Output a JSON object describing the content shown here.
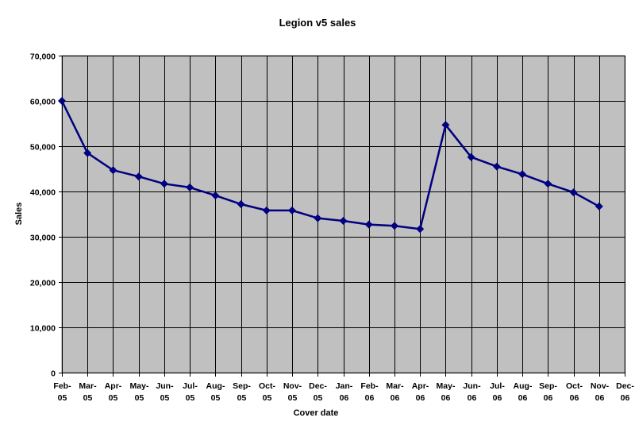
{
  "chart_data": {
    "type": "line",
    "title": "Legion v5 sales",
    "xlabel": "Cover date",
    "ylabel": "Sales",
    "ylim": [
      0,
      70000
    ],
    "ytick_step": 10000,
    "y_tick_labels": [
      "0",
      "10,000",
      "20,000",
      "30,000",
      "40,000",
      "50,000",
      "60,000",
      "70,000"
    ],
    "grid": true,
    "legend": "none",
    "plot_background": "#c0c0c0",
    "series_color": "#000080",
    "categories": [
      [
        "Feb-",
        "05"
      ],
      [
        "Mar-",
        "05"
      ],
      [
        "Apr-",
        "05"
      ],
      [
        "May-",
        "05"
      ],
      [
        "Jun-",
        "05"
      ],
      [
        "Jul-",
        "05"
      ],
      [
        "Aug-",
        "05"
      ],
      [
        "Sep-",
        "05"
      ],
      [
        "Oct-",
        "05"
      ],
      [
        "Nov-",
        "05"
      ],
      [
        "Dec-",
        "05"
      ],
      [
        "Jan-",
        "06"
      ],
      [
        "Feb-",
        "06"
      ],
      [
        "Mar-",
        "06"
      ],
      [
        "Apr-",
        "06"
      ],
      [
        "May-",
        "06"
      ],
      [
        "Jun-",
        "06"
      ],
      [
        "Jul-",
        "06"
      ],
      [
        "Aug-",
        "06"
      ],
      [
        "Sep-",
        "06"
      ],
      [
        "Oct-",
        "06"
      ],
      [
        "Nov-",
        "06"
      ],
      [
        "Dec-",
        "06"
      ]
    ],
    "series": [
      {
        "values": [
          60000,
          48500,
          44700,
          43300,
          41700,
          40900,
          39100,
          37200,
          35800,
          35800,
          34100,
          33500,
          32700,
          32400,
          31700,
          54700,
          47600,
          45500,
          43800,
          41700,
          39800,
          36700,
          null
        ]
      }
    ]
  }
}
